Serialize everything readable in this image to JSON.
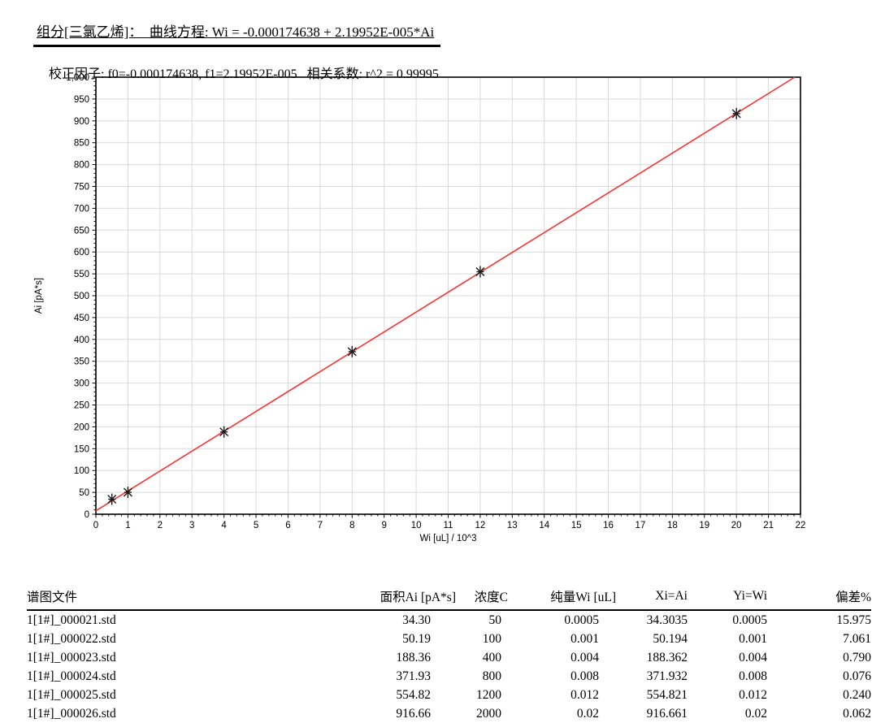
{
  "report": {
    "title_line": "组分[三氯乙烯]：  曲线方程: Wi = -0.000174638 + 2.19952E-005*Ai",
    "factor_line": "校正因子: f0=-0.000174638, f1=2.19952E-005   相关系数: r^2 = 0.99995"
  },
  "chart_data": {
    "type": "scatter",
    "title": "",
    "xlabel": "Wi [uL] / 10^3",
    "ylabel": "Ai [pA*s]",
    "xlim": [
      0,
      22
    ],
    "ylim": [
      0,
      1000
    ],
    "x_tick_step": 1,
    "y_tick_step": 50,
    "x_minor_step": 0.2,
    "y_minor_step": 10,
    "grid": true,
    "points": [
      {
        "x": 0.5,
        "y": 34.3
      },
      {
        "x": 1,
        "y": 50.19
      },
      {
        "x": 4,
        "y": 188.36
      },
      {
        "x": 8,
        "y": 371.93
      },
      {
        "x": 12,
        "y": 554.82
      },
      {
        "x": 20,
        "y": 916.66
      }
    ],
    "fit_line": {
      "equation": "Wi = -0.000174638 + 2.19952E-005*Ai",
      "f0": -0.000174638,
      "f1": 2.19952e-05,
      "color": "#ff3232"
    },
    "marker": {
      "shape": "asterisk",
      "color": "#1a1a1a"
    },
    "r_squared": 0.99995,
    "grid_color": "#d9d9d9"
  },
  "table": {
    "headers": [
      "谱图文件",
      "面积Ai [pA*s]",
      "浓度C",
      "纯量Wi [uL]",
      "Xi=Ai",
      "Yi=Wi",
      "偏差%"
    ],
    "rows": [
      [
        "1[1#]_000021.std",
        "34.30",
        "50",
        "0.0005",
        "34.3035",
        "0.0005",
        "15.975"
      ],
      [
        "1[1#]_000022.std",
        "50.19",
        "100",
        "0.001",
        "50.194",
        "0.001",
        "7.061"
      ],
      [
        "1[1#]_000023.std",
        "188.36",
        "400",
        "0.004",
        "188.362",
        "0.004",
        "0.790"
      ],
      [
        "1[1#]_000024.std",
        "371.93",
        "800",
        "0.008",
        "371.932",
        "0.008",
        "0.076"
      ],
      [
        "1[1#]_000025.std",
        "554.82",
        "1200",
        "0.012",
        "554.821",
        "0.012",
        "0.240"
      ],
      [
        "1[1#]_000026.std",
        "916.66",
        "2000",
        "0.02",
        "916.661",
        "0.02",
        "0.062"
      ]
    ]
  }
}
